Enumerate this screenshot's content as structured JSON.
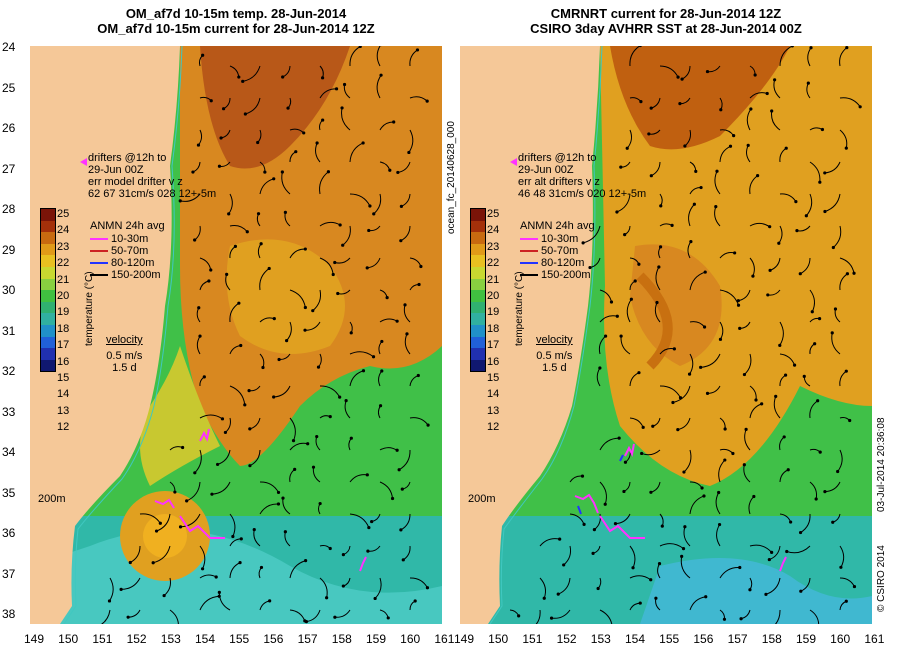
{
  "left": {
    "title1": "OM_af7d 10-15m temp. 28-Jun-2014",
    "title2": "OM_af7d 10-15m current for 28-Jun-2014 12Z",
    "drifters": [
      "drifters @12h to",
      "29-Jun 00Z",
      "err model drifter v z",
      "62   67    31cm/s 028 12+-5m"
    ],
    "colorbar_label": "temperature (°C)",
    "velocity_title": "velocity",
    "velocity_scale": "0.5 m/s",
    "velocity_time": "1.5 d",
    "isobath": "200m"
  },
  "right": {
    "title1": "CMRNRT current for 28-Jun-2014 12Z",
    "title2": "CSIRO 3day AVHRR SST at 28-Jun-2014 00Z",
    "drifters": [
      "drifters @12h to",
      "29-Jun 00Z",
      "err alt drifters v z",
      "46 48 31cm/s 020 12+-5m"
    ],
    "colorbar_label": "temperature (°C)",
    "velocity_title": "velocity",
    "velocity_scale": "0.5 m/s",
    "velocity_time": "1.5 d",
    "isobath": "200m",
    "side_label": "ocean_fc_20140628_000"
  },
  "anmn": {
    "title": "ANMN 24h avg",
    "entries": [
      {
        "label": "10-30m",
        "color": "#ff33ff"
      },
      {
        "label": "50-70m",
        "color": "#cc2222"
      },
      {
        "label": "80-120m",
        "color": "#2233ff"
      },
      {
        "label": "150-200m",
        "color": "#000000"
      }
    ]
  },
  "colorbar": {
    "ticks": [
      "25",
      "24",
      "23",
      "22",
      "21",
      "20",
      "19",
      "18",
      "17",
      "16",
      "15",
      "14",
      "13",
      "12"
    ],
    "colors": [
      "#7a1408",
      "#a4300a",
      "#c86a10",
      "#e09a18",
      "#e8c020",
      "#c8d830",
      "#88d040",
      "#40c040",
      "#30b070",
      "#30b0a0",
      "#2090c8",
      "#2060d8",
      "#2030b0",
      "#101870"
    ]
  },
  "axes": {
    "y_ticks": [
      "24",
      "25",
      "26",
      "27",
      "28",
      "29",
      "30",
      "31",
      "32",
      "33",
      "34",
      "35",
      "36",
      "37",
      "38"
    ],
    "x_ticks_left": [
      "149",
      "150",
      "151",
      "152",
      "153",
      "154",
      "155",
      "156",
      "157",
      "158",
      "159",
      "160",
      "161"
    ],
    "x_ticks_right": [
      "149",
      "150",
      "151",
      "152",
      "153",
      "154",
      "155",
      "156",
      "157",
      "158",
      "159",
      "160",
      "161"
    ]
  },
  "credits": {
    "copyright": "© CSIRO 2014",
    "timestamp": "03-Jul-2014 20:36:08"
  },
  "colors": {
    "land": "#f5c898",
    "warm": "#d87818",
    "mid": "#c8c830",
    "cool": "#40b848",
    "cold": "#30b8b0",
    "isobath": "#40c8c0",
    "drifter": "#ff33ff"
  }
}
